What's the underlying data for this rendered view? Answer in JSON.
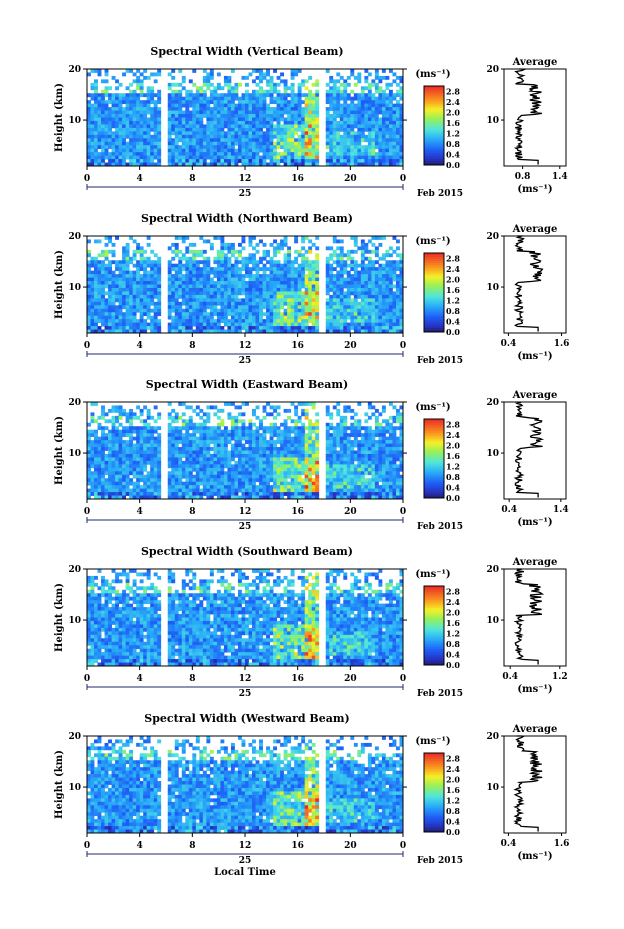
{
  "chart_data": [
    {
      "type": "heatmap",
      "title": "Spectral Width (Vertical Beam)",
      "ylabel": "Height (km)",
      "yticks": [
        "10",
        "20"
      ],
      "xticks": [
        "0",
        "4",
        "8",
        "12",
        "16",
        "20",
        "0"
      ],
      "day_label": "25",
      "month_label": "Feb 2015",
      "colorbar": {
        "unit": "(ms⁻¹)",
        "ticks": [
          "2.8",
          "2.4",
          "2.0",
          "1.6",
          "1.2",
          "0.8",
          "0.4",
          "0.0"
        ],
        "range": [
          0.0,
          3.0
        ]
      },
      "data_gaps_hours": [
        [
          5.6,
          6.2
        ],
        [
          17.5,
          18.0
        ]
      ],
      "average": {
        "title": "Average",
        "ylabel": "",
        "xlabel": "(ms⁻¹)",
        "xticks": [
          "0.8",
          "1.4"
        ],
        "xrange": [
          0.5,
          1.5
        ],
        "yticks": [
          "10",
          "20"
        ],
        "yrange": [
          1,
          20
        ]
      }
    },
    {
      "type": "heatmap",
      "title": "Spectral Width (Northward Beam)",
      "ylabel": "Height (km)",
      "yticks": [
        "10",
        "20"
      ],
      "xticks": [
        "0",
        "4",
        "8",
        "12",
        "16",
        "20",
        "0"
      ],
      "day_label": "25",
      "month_label": "Feb 2015",
      "colorbar": {
        "unit": "(ms⁻¹)",
        "ticks": [
          "2.8",
          "2.4",
          "2.0",
          "1.6",
          "1.2",
          "0.8",
          "0.4",
          "0.0"
        ],
        "range": [
          0.0,
          3.0
        ]
      },
      "data_gaps_hours": [
        [
          5.6,
          6.2
        ],
        [
          17.5,
          18.0
        ]
      ],
      "average": {
        "title": "Average",
        "ylabel": "",
        "xlabel": "(ms⁻¹)",
        "xticks": [
          "0.4",
          "1.6"
        ],
        "xrange": [
          0.3,
          1.7
        ],
        "yticks": [
          "10",
          "20"
        ],
        "yrange": [
          1,
          20
        ]
      }
    },
    {
      "type": "heatmap",
      "title": "Spectral Width (Eastward Beam)",
      "ylabel": "Height (km)",
      "yticks": [
        "10",
        "20"
      ],
      "xticks": [
        "0",
        "4",
        "8",
        "12",
        "16",
        "20",
        "0"
      ],
      "day_label": "25",
      "month_label": "Feb 2015",
      "colorbar": {
        "unit": "(ms⁻¹)",
        "ticks": [
          "2.8",
          "2.4",
          "2.0",
          "1.6",
          "1.2",
          "0.8",
          "0.4",
          "0.0"
        ],
        "range": [
          0.0,
          3.0
        ]
      },
      "data_gaps_hours": [
        [
          5.6,
          6.2
        ],
        [
          17.5,
          18.0
        ]
      ],
      "average": {
        "title": "Average",
        "ylabel": "",
        "xlabel": "(ms⁻¹)",
        "xticks": [
          "0.4",
          "1.4"
        ],
        "xrange": [
          0.3,
          1.5
        ],
        "yticks": [
          "10",
          "20"
        ],
        "yrange": [
          1,
          20
        ]
      }
    },
    {
      "type": "heatmap",
      "title": "Spectral Width (Southward Beam)",
      "ylabel": "Height (km)",
      "yticks": [
        "10",
        "20"
      ],
      "xticks": [
        "0",
        "4",
        "8",
        "12",
        "16",
        "20",
        "0"
      ],
      "day_label": "25",
      "month_label": "Feb 2015",
      "colorbar": {
        "unit": "(ms⁻¹)",
        "ticks": [
          "2.8",
          "2.4",
          "2.0",
          "1.6",
          "1.2",
          "0.8",
          "0.4",
          "0.0"
        ],
        "range": [
          0.0,
          3.0
        ]
      },
      "data_gaps_hours": [
        [
          5.6,
          6.2
        ],
        [
          17.5,
          18.0
        ]
      ],
      "average": {
        "title": "Average",
        "ylabel": "",
        "xlabel": "(ms⁻¹)",
        "xticks": [
          "0.4",
          "1.2"
        ],
        "xrange": [
          0.3,
          1.3
        ],
        "yticks": [
          "10",
          "20"
        ],
        "yrange": [
          1,
          20
        ]
      }
    },
    {
      "type": "heatmap",
      "title": "Spectral Width (Westward Beam)",
      "ylabel": "Height (km)",
      "xlabel": "Local Time",
      "yticks": [
        "10",
        "20"
      ],
      "xticks": [
        "0",
        "4",
        "8",
        "12",
        "16",
        "20",
        "0"
      ],
      "day_label": "25",
      "month_label": "Feb 2015",
      "colorbar": {
        "unit": "(ms⁻¹)",
        "ticks": [
          "2.8",
          "2.4",
          "2.0",
          "1.6",
          "1.2",
          "0.8",
          "0.4",
          "0.0"
        ],
        "range": [
          0.0,
          3.0
        ]
      },
      "data_gaps_hours": [
        [
          5.6,
          6.2
        ],
        [
          17.5,
          18.0
        ]
      ],
      "average": {
        "title": "Average",
        "ylabel": "",
        "xlabel": "(ms⁻¹)",
        "xticks": [
          "0.4",
          "1.6"
        ],
        "xrange": [
          0.3,
          1.7
        ],
        "yticks": [
          "10",
          "20"
        ],
        "yrange": [
          1,
          20
        ]
      }
    }
  ],
  "colors": {
    "gap": "#ffffff",
    "axis": "#000000",
    "navy": "#1f2a6e"
  }
}
